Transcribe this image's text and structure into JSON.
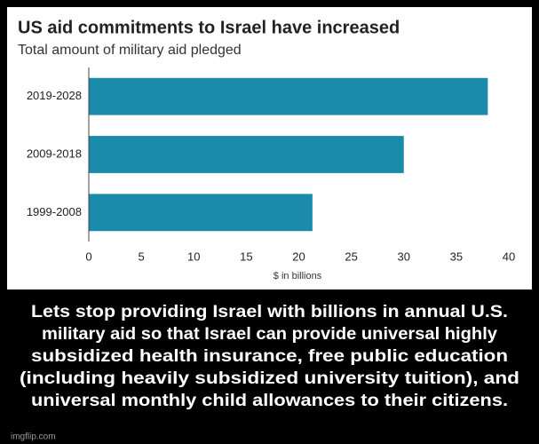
{
  "chart_data": {
    "type": "bar",
    "orientation": "horizontal",
    "title": "US aid commitments to Israel have increased",
    "subtitle": "Total amount of military aid pledged",
    "categories": [
      "2019-2028",
      "2009-2018",
      "1999-2008"
    ],
    "values": [
      38,
      30,
      21.3
    ],
    "color": "#1a8bab",
    "xlabel": "$ in billions",
    "xlim": [
      0,
      40
    ],
    "xticks": [
      0,
      5,
      10,
      15,
      20,
      25,
      30,
      35,
      40
    ]
  },
  "caption": [
    "Lets stop providing Israel with billions in annual U.S.",
    "military aid so that Israel can provide universal highly",
    "subsidized health insurance, free public education",
    "(including heavily subsidized university tuition), and",
    "universal monthly child allowances to their citizens."
  ],
  "watermark": "imgflip.com"
}
